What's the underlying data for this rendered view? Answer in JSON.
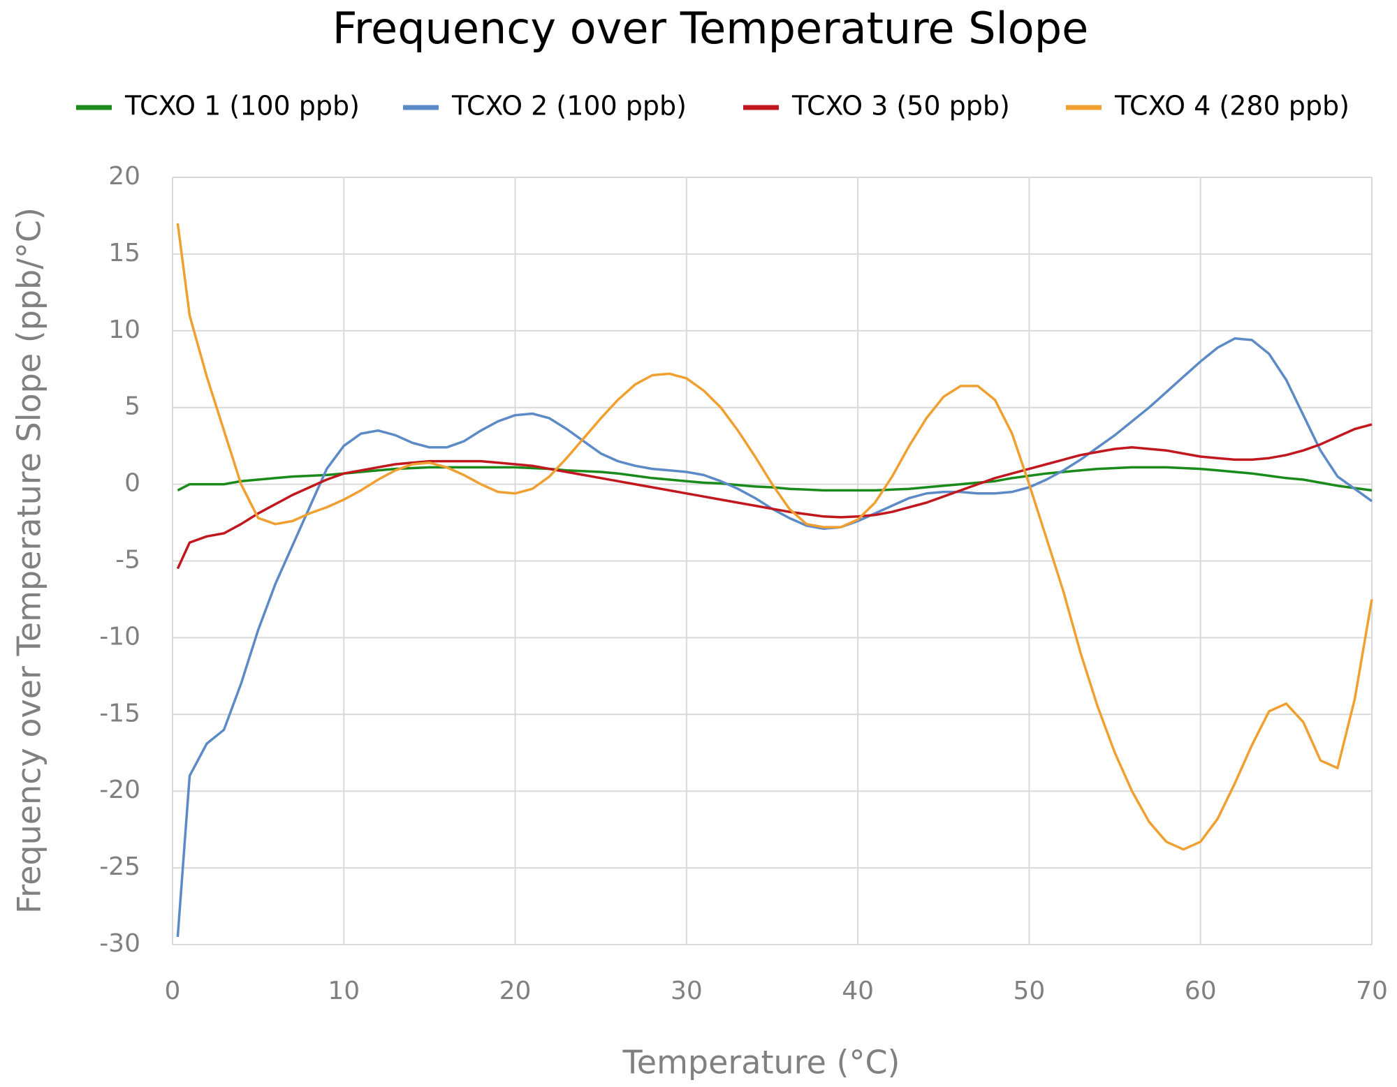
{
  "chart_data": {
    "type": "line",
    "title": "Frequency over Temperature Slope",
    "xlabel": "Temperature (°C)",
    "ylabel": "Frequency over Temperature Slope (ppb/°C)",
    "x": [
      0.3,
      1,
      2,
      3,
      4,
      5,
      6,
      7,
      8,
      9,
      10,
      11,
      12,
      13,
      14,
      15,
      16,
      17,
      18,
      19,
      20,
      21,
      22,
      23,
      24,
      25,
      26,
      27,
      28,
      29,
      30,
      31,
      32,
      33,
      34,
      35,
      36,
      37,
      38,
      39,
      40,
      41,
      42,
      43,
      44,
      45,
      46,
      47,
      48,
      49,
      50,
      51,
      52,
      53,
      54,
      55,
      56,
      57,
      58,
      59,
      60,
      61,
      62,
      63,
      64,
      65,
      66,
      67,
      68,
      69,
      70
    ],
    "series": [
      {
        "name": "TCXO 1 (100 ppb)",
        "color": "#1a8a1a",
        "values": [
          -0.4,
          0,
          0,
          0,
          0.2,
          0.3,
          0.4,
          0.5,
          0.55,
          0.6,
          0.7,
          0.8,
          0.9,
          1,
          1.05,
          1.1,
          1.1,
          1.1,
          1.1,
          1.1,
          1.1,
          1.05,
          1,
          0.9,
          0.85,
          0.8,
          0.7,
          0.55,
          0.4,
          0.3,
          0.2,
          0.1,
          0.05,
          -0.05,
          -0.15,
          -0.2,
          -0.3,
          -0.35,
          -0.4,
          -0.4,
          -0.4,
          -0.4,
          -0.35,
          -0.3,
          -0.2,
          -0.1,
          0,
          0.1,
          0.2,
          0.4,
          0.55,
          0.7,
          0.8,
          0.9,
          1,
          1.05,
          1.1,
          1.1,
          1.1,
          1.05,
          1,
          0.9,
          0.8,
          0.7,
          0.55,
          0.4,
          0.3,
          0.1,
          -0.1,
          -0.25,
          -0.4
        ]
      },
      {
        "name": "TCXO 2 (100 ppb)",
        "color": "#5b8ac6",
        "values": [
          -29.5,
          -19,
          -16.9,
          -16,
          -13,
          -9.5,
          -6.5,
          -4,
          -1.5,
          1,
          2.5,
          3.3,
          3.5,
          3.2,
          2.7,
          2.4,
          2.4,
          2.8,
          3.5,
          4.1,
          4.5,
          4.6,
          4.3,
          3.6,
          2.8,
          2,
          1.5,
          1.2,
          1,
          0.9,
          0.8,
          0.6,
          0.2,
          -0.3,
          -0.9,
          -1.6,
          -2.2,
          -2.7,
          -2.9,
          -2.8,
          -2.4,
          -1.9,
          -1.4,
          -0.9,
          -0.6,
          -0.5,
          -0.5,
          -0.6,
          -0.6,
          -0.5,
          -0.2,
          0.3,
          0.9,
          1.6,
          2.4,
          3.2,
          4.1,
          5,
          6,
          7,
          8,
          8.9,
          9.5,
          9.4,
          8.5,
          6.8,
          4.5,
          2.2,
          0.5,
          -0.3,
          -1.1
        ]
      },
      {
        "name": "TCXO 3 (50 ppb)",
        "color": "#c0181e",
        "values": [
          -5.5,
          -3.8,
          -3.4,
          -3.2,
          -2.6,
          -1.9,
          -1.3,
          -0.7,
          -0.2,
          0.3,
          0.7,
          0.9,
          1.1,
          1.3,
          1.4,
          1.5,
          1.5,
          1.5,
          1.5,
          1.4,
          1.3,
          1.2,
          1,
          0.8,
          0.6,
          0.4,
          0.2,
          0,
          -0.2,
          -0.4,
          -0.6,
          -0.8,
          -1,
          -1.2,
          -1.4,
          -1.6,
          -1.8,
          -1.95,
          -2.1,
          -2.15,
          -2.1,
          -2,
          -1.8,
          -1.5,
          -1.2,
          -0.8,
          -0.4,
          0,
          0.4,
          0.7,
          1,
          1.3,
          1.6,
          1.9,
          2.1,
          2.3,
          2.4,
          2.3,
          2.2,
          2,
          1.8,
          1.7,
          1.6,
          1.6,
          1.7,
          1.9,
          2.2,
          2.6,
          3.1,
          3.6,
          3.9
        ]
      },
      {
        "name": "TCXO 4 (280 ppb)",
        "color": "#f0a030",
        "values": [
          17,
          11,
          7,
          3.5,
          0,
          -2.2,
          -2.6,
          -2.4,
          -1.9,
          -1.5,
          -1,
          -0.4,
          0.3,
          0.9,
          1.3,
          1.4,
          1.1,
          0.6,
          0,
          -0.5,
          -0.6,
          -0.3,
          0.5,
          1.7,
          3,
          4.3,
          5.5,
          6.5,
          7.1,
          7.2,
          6.9,
          6.1,
          5,
          3.5,
          1.8,
          0,
          -1.6,
          -2.6,
          -2.8,
          -2.8,
          -2.3,
          -1.2,
          0.5,
          2.5,
          4.3,
          5.7,
          6.4,
          6.4,
          5.5,
          3.3,
          0,
          -3.5,
          -7,
          -11,
          -14.5,
          -17.5,
          -20,
          -22,
          -23.3,
          -23.8,
          -23.3,
          -21.8,
          -19.5,
          -17,
          -14.8,
          -14.3,
          -15.5,
          -18,
          -18.5,
          -14,
          -7.5
        ]
      }
    ],
    "xlim": [
      0,
      70
    ],
    "xticks": [
      0,
      10,
      20,
      30,
      40,
      50,
      60,
      70
    ],
    "ylim": [
      -30,
      20
    ],
    "yticks": [
      -30,
      -25,
      -20,
      -15,
      -10,
      -5,
      0,
      5,
      10,
      15,
      20
    ],
    "grid": true,
    "legend": "top"
  }
}
